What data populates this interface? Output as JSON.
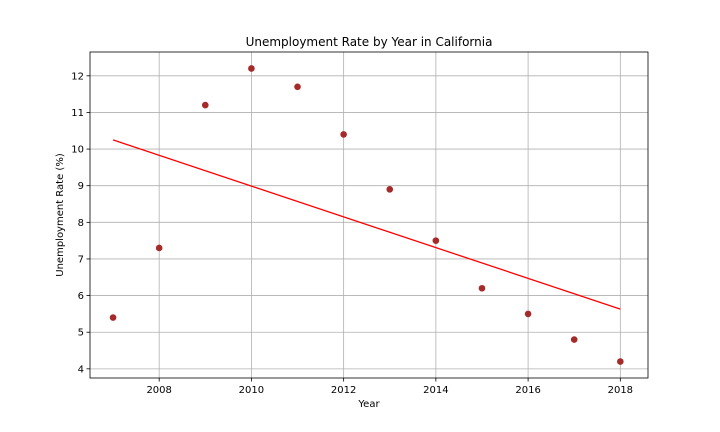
{
  "chart_data": {
    "type": "scatter",
    "title": "Unemployment Rate by Year in California",
    "xlabel": "Year",
    "ylabel": "Unemployment Rate (%)",
    "xlim": [
      2006.5,
      2018.6
    ],
    "ylim": [
      3.75,
      12.65
    ],
    "xticks": [
      2008,
      2010,
      2012,
      2014,
      2016,
      2018
    ],
    "yticks": [
      4,
      5,
      6,
      7,
      8,
      9,
      10,
      11,
      12
    ],
    "grid": true,
    "legend": "none",
    "series": [
      {
        "type": "scatter",
        "color": "#a52a2a",
        "x": [
          2007,
          2008,
          2009,
          2010,
          2011,
          2012,
          2013,
          2014,
          2015,
          2016,
          2017,
          2018
        ],
        "y": [
          5.4,
          7.3,
          11.2,
          12.2,
          11.7,
          10.4,
          8.9,
          7.5,
          6.2,
          5.5,
          4.8,
          4.2
        ]
      },
      {
        "type": "line",
        "color": "#ff0000",
        "x": [
          2007,
          2018
        ],
        "y": [
          10.25,
          5.63
        ]
      }
    ]
  }
}
